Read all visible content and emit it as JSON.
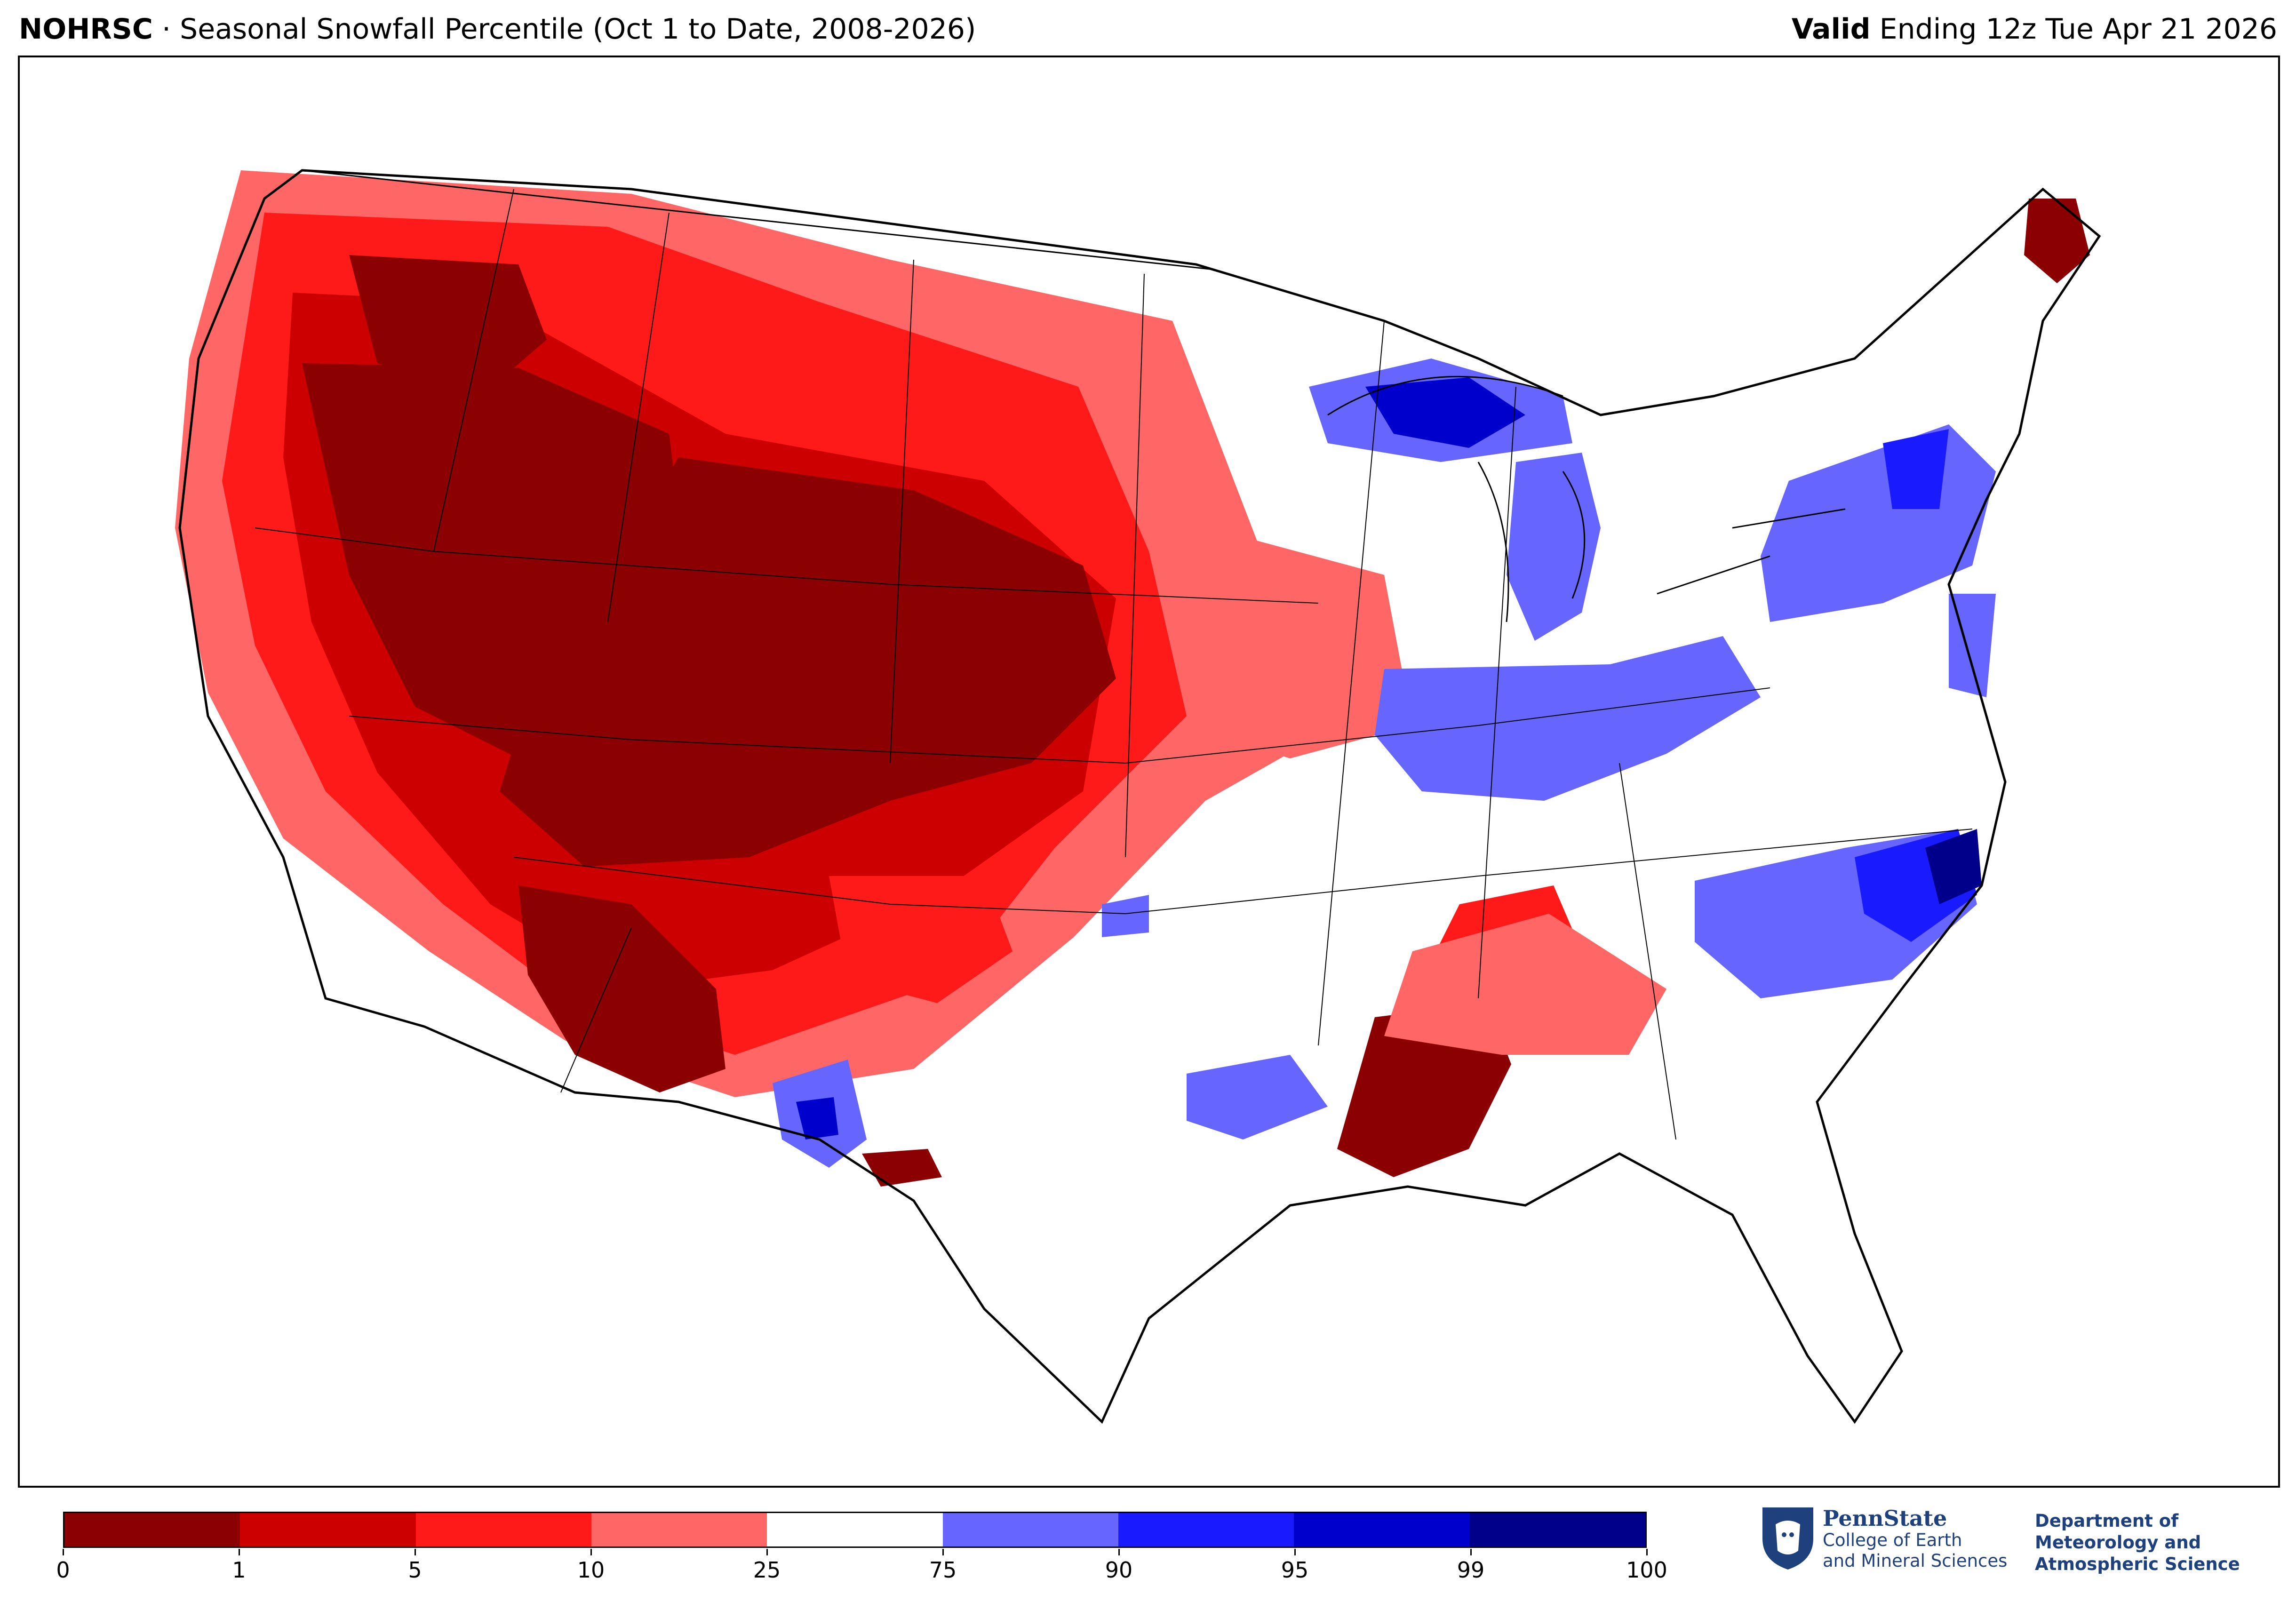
{
  "header": {
    "source": "NOHRSC",
    "separator": " · ",
    "product": "Seasonal Snowfall Percentile (Oct 1 to Date, 2008-2026)",
    "valid_label": "Valid",
    "valid_text": " Ending 12z Tue Apr 21 2026"
  },
  "colorbar": {
    "segments": [
      {
        "from": "0",
        "to": "1",
        "color": "#8b0000"
      },
      {
        "from": "1",
        "to": "5",
        "color": "#cc0000"
      },
      {
        "from": "5",
        "to": "10",
        "color": "#ff1a1a"
      },
      {
        "from": "10",
        "to": "25",
        "color": "#ff6666"
      },
      {
        "from": "25",
        "to": "75",
        "color": "#ffffff"
      },
      {
        "from": "75",
        "to": "90",
        "color": "#6666ff"
      },
      {
        "from": "90",
        "to": "95",
        "color": "#1a1aff"
      },
      {
        "from": "95",
        "to": "99",
        "color": "#0000cc"
      },
      {
        "from": "99",
        "to": "100",
        "color": "#00008b"
      }
    ],
    "tick_labels": [
      "0",
      "1",
      "5",
      "10",
      "25",
      "75",
      "90",
      "95",
      "99",
      "100"
    ]
  },
  "logos": {
    "university": "PennState",
    "college_line1": "College of Earth",
    "college_line2": "and Mineral Sciences",
    "dept_line1": "Department of",
    "dept_line2": "Meteorology and",
    "dept_line3": "Atmospheric Science"
  },
  "map": {
    "region": "Contiguous United States",
    "below_normal_areas": [
      "Pacific Northwest",
      "Great Basin",
      "Northern and Central Rockies",
      "Colorado",
      "Wyoming",
      "Northern Plains",
      "Southwest",
      "Lower Mississippi Valley",
      "Northern Maine"
    ],
    "above_normal_areas": [
      "Upper Michigan",
      "Lower Michigan",
      "Ohio Valley",
      "Indiana",
      "North Carolina",
      "Virginia",
      "New England",
      "Mid-Atlantic coast",
      "West Texas",
      "Oklahoma patches",
      "Arkansas"
    ]
  }
}
